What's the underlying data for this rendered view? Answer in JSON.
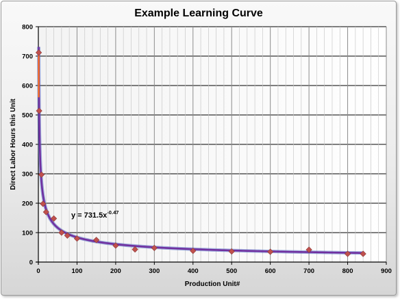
{
  "chart_data": {
    "type": "scatter",
    "title": "Example Learning Curve",
    "xlabel": "Production Unit#",
    "ylabel": "Direct Labor Hours this Unit",
    "xlim": [
      0,
      900
    ],
    "ylim": [
      0,
      800
    ],
    "xticks": [
      0,
      100,
      200,
      300,
      400,
      500,
      600,
      700,
      800,
      900
    ],
    "yticks": [
      0,
      100,
      200,
      300,
      400,
      500,
      600,
      700,
      800
    ],
    "grid": true,
    "legend": "none",
    "series": [
      {
        "marker": "diamond",
        "color": "#c0504d",
        "points": [
          {
            "x": 1,
            "y": 712
          },
          {
            "x": 2,
            "y": 514
          },
          {
            "x": 8,
            "y": 297
          },
          {
            "x": 12,
            "y": 198
          },
          {
            "x": 20,
            "y": 170
          },
          {
            "x": 40,
            "y": 148
          },
          {
            "x": 60,
            "y": 100
          },
          {
            "x": 75,
            "y": 90
          },
          {
            "x": 100,
            "y": 80
          },
          {
            "x": 150,
            "y": 75
          },
          {
            "x": 200,
            "y": 56
          },
          {
            "x": 250,
            "y": 43
          },
          {
            "x": 300,
            "y": 48
          },
          {
            "x": 400,
            "y": 38
          },
          {
            "x": 500,
            "y": 36
          },
          {
            "x": 600,
            "y": 35
          },
          {
            "x": 700,
            "y": 42
          },
          {
            "x": 800,
            "y": 28
          },
          {
            "x": 840,
            "y": 28
          }
        ]
      }
    ],
    "trendline": {
      "type": "power",
      "coefficient": 731.5,
      "exponent": -0.47,
      "color": "#7030a0",
      "equation_prefix": "y = 731.5x",
      "equation_exponent": "-0.47"
    }
  }
}
